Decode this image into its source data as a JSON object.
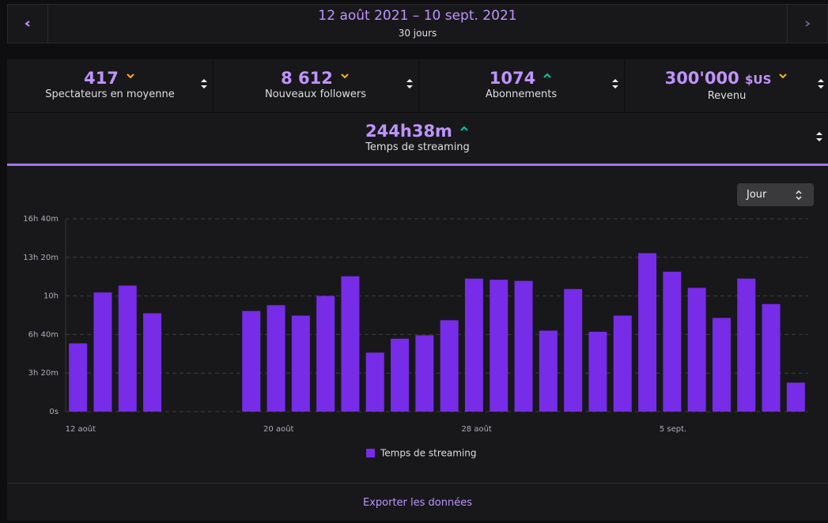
{
  "header": {
    "range": "12 août 2021 – 10 sept. 2021",
    "subtitle": "30 jours"
  },
  "stats": [
    {
      "value": "417",
      "label": "Spectateurs en moyenne",
      "trend": "down"
    },
    {
      "value": "8 612",
      "label": "Nouveaux followers",
      "trend": "down"
    },
    {
      "value": "1074",
      "label": "Abonnements",
      "trend": "up"
    },
    {
      "value": "300'000",
      "unit": "$US",
      "label": "Revenu",
      "trend": "down"
    },
    {
      "value": "244h38m",
      "label": "Temps de streaming",
      "trend": "up"
    }
  ],
  "dropdown": "Jour",
  "chart_data": {
    "type": "bar",
    "categories": [
      "12 août",
      null,
      null,
      null,
      null,
      null,
      null,
      null,
      "20 août",
      null,
      null,
      null,
      null,
      null,
      null,
      null,
      "28 août",
      null,
      null,
      null,
      null,
      null,
      null,
      null,
      "5 sept.",
      null,
      null,
      null,
      null,
      null
    ],
    "series": [
      {
        "name": "Temps de streaming",
        "color": "#772ce8",
        "values": [
          5.9,
          10.3,
          10.9,
          8.5,
          0,
          0,
          0,
          8.7,
          9.2,
          8.3,
          10.0,
          11.7,
          5.1,
          6.3,
          6.6,
          7.9,
          11.5,
          11.4,
          11.3,
          7.0,
          10.6,
          6.9,
          8.3,
          13.7,
          12.1,
          10.7,
          8.1,
          11.5,
          9.3,
          2.5
        ]
      }
    ],
    "ylim": [
      0,
      16.667
    ],
    "yticks": [
      {
        "value": 0,
        "label": "0s"
      },
      {
        "value": 3.333,
        "label": "3h 20m"
      },
      {
        "value": 6.667,
        "label": "6h 40m"
      },
      {
        "value": 10,
        "label": "10h"
      },
      {
        "value": 13.333,
        "label": "13h 20m"
      },
      {
        "value": 16.667,
        "label": "16h 40m"
      }
    ],
    "grid": true,
    "legend": "bottom"
  },
  "footer": "Exporter les données"
}
